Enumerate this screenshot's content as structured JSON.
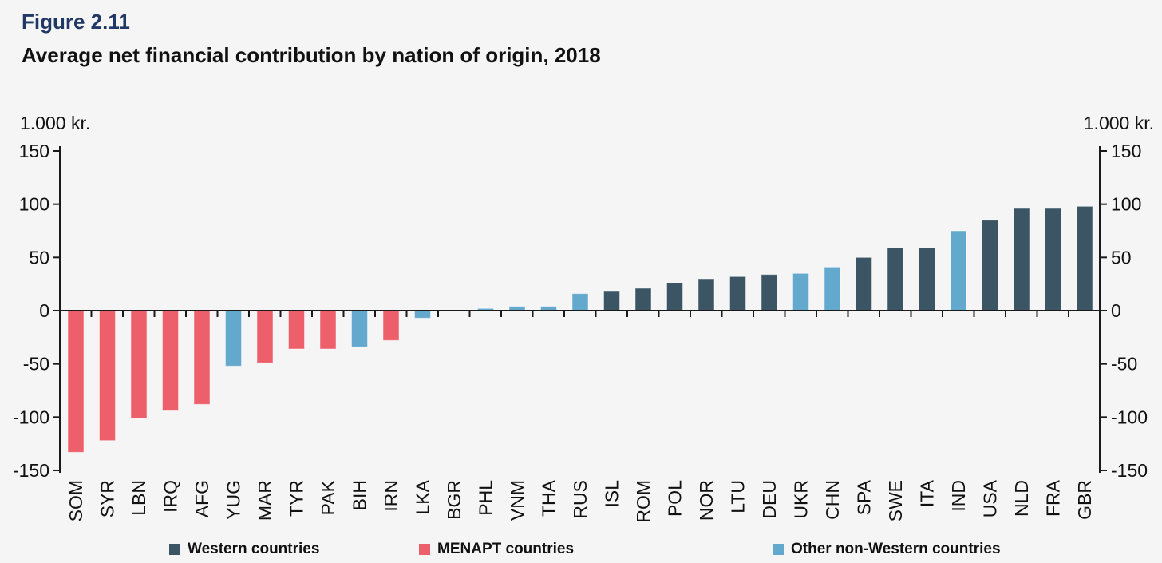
{
  "figure": {
    "label": "Figure 2.11",
    "title": "Average net financial contribution by nation of origin, 2018"
  },
  "chart_data": {
    "type": "bar",
    "title": "Average net financial contribution by nation of origin, 2018",
    "unit_label_left": "1.000 kr.",
    "unit_label_right": "1.000 kr.",
    "ylim": [
      -150,
      150
    ],
    "yticks": [
      150,
      100,
      50,
      0,
      -50,
      -100,
      -150
    ],
    "grid": false,
    "legend_position": "bottom",
    "categories": [
      "SOM",
      "SYR",
      "LBN",
      "IRQ",
      "AFG",
      "YUG",
      "MAR",
      "TYR",
      "PAK",
      "BIH",
      "IRN",
      "LKA",
      "BGR",
      "PHL",
      "VNM",
      "THA",
      "RUS",
      "ISL",
      "ROM",
      "POL",
      "NOR",
      "LTU",
      "DEU",
      "UKR",
      "CHN",
      "SPA",
      "SWE",
      "ITA",
      "IND",
      "USA",
      "NLD",
      "FRA",
      "GBR"
    ],
    "values": [
      -133,
      -122,
      -101,
      -94,
      -88,
      -52,
      -49,
      -36,
      -36,
      -34,
      -28,
      -7,
      0,
      2,
      4,
      4,
      16,
      18,
      21,
      26,
      30,
      32,
      34,
      35,
      41,
      50,
      59,
      59,
      75,
      85,
      96,
      96,
      98
    ],
    "bar_groups": [
      "menapt",
      "menapt",
      "menapt",
      "menapt",
      "menapt",
      "other",
      "menapt",
      "menapt",
      "menapt",
      "other",
      "menapt",
      "other",
      "western",
      "other",
      "other",
      "other",
      "other",
      "western",
      "western",
      "western",
      "western",
      "western",
      "western",
      "other",
      "other",
      "western",
      "western",
      "western",
      "other",
      "western",
      "western",
      "western",
      "western"
    ],
    "groups": {
      "western": {
        "label": "Western countries",
        "color": "#3c5565"
      },
      "menapt": {
        "label": "MENAPT countries",
        "color": "#ed5f6a"
      },
      "other": {
        "label": "Other non-Western countries",
        "color": "#63a9cd"
      }
    },
    "legend_order": [
      "western",
      "menapt",
      "other"
    ]
  },
  "colors": {
    "background": "#f5f5f6",
    "axis": "#1a1a1a",
    "figure_label": "#1f3864",
    "text": "#111111"
  }
}
